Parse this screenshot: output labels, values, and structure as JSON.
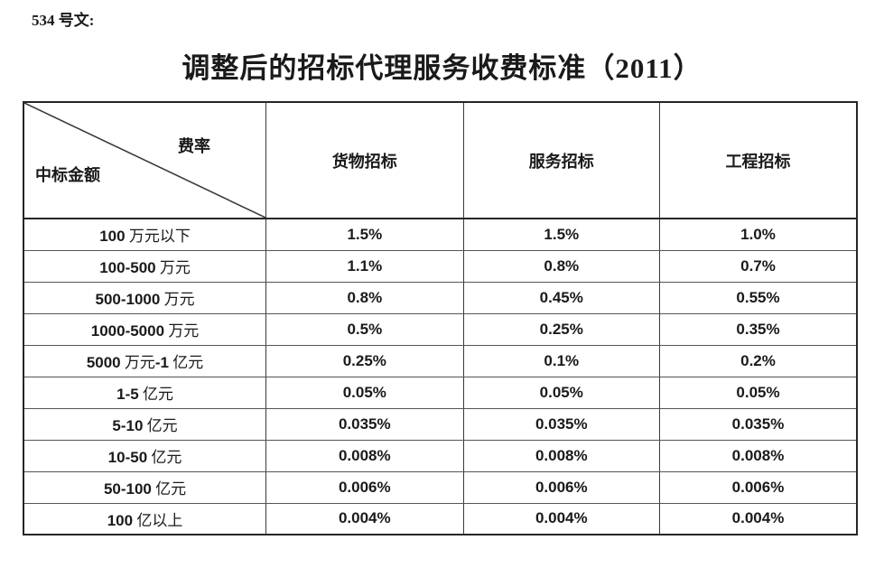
{
  "doc": {
    "ref_label": "534 号文:",
    "title": "调整后的招标代理服务收费标准（2011）"
  },
  "table": {
    "corner_top_right": "费率",
    "corner_bottom_left": "中标金额",
    "columns": [
      "货物招标",
      "服务招标",
      "工程招标"
    ],
    "rows": [
      {
        "amount": "100 万元以下",
        "rates": [
          "1.5%",
          "1.5%",
          "1.0%"
        ]
      },
      {
        "amount": "100-500 万元",
        "rates": [
          "1.1%",
          "0.8%",
          "0.7%"
        ]
      },
      {
        "amount": "500-1000 万元",
        "rates": [
          "0.8%",
          "0.45%",
          "0.55%"
        ]
      },
      {
        "amount": "1000-5000 万元",
        "rates": [
          "0.5%",
          "0.25%",
          "0.35%"
        ]
      },
      {
        "amount": "5000 万元-1 亿元",
        "rates": [
          "0.25%",
          "0.1%",
          "0.2%"
        ]
      },
      {
        "amount": "1-5 亿元",
        "rates": [
          "0.05%",
          "0.05%",
          "0.05%"
        ]
      },
      {
        "amount": "5-10 亿元",
        "rates": [
          "0.035%",
          "0.035%",
          "0.035%"
        ]
      },
      {
        "amount": "10-50 亿元",
        "rates": [
          "0.008%",
          "0.008%",
          "0.008%"
        ]
      },
      {
        "amount": "50-100 亿元",
        "rates": [
          "0.006%",
          "0.006%",
          "0.006%"
        ]
      },
      {
        "amount": "100 亿以上",
        "rates": [
          "0.004%",
          "0.004%",
          "0.004%"
        ]
      }
    ]
  },
  "colors": {
    "text": "#1a1a1a",
    "outer_border": "#262626",
    "inner_border": "#3a3a3a",
    "row_line": "#555555",
    "background": "#ffffff"
  }
}
